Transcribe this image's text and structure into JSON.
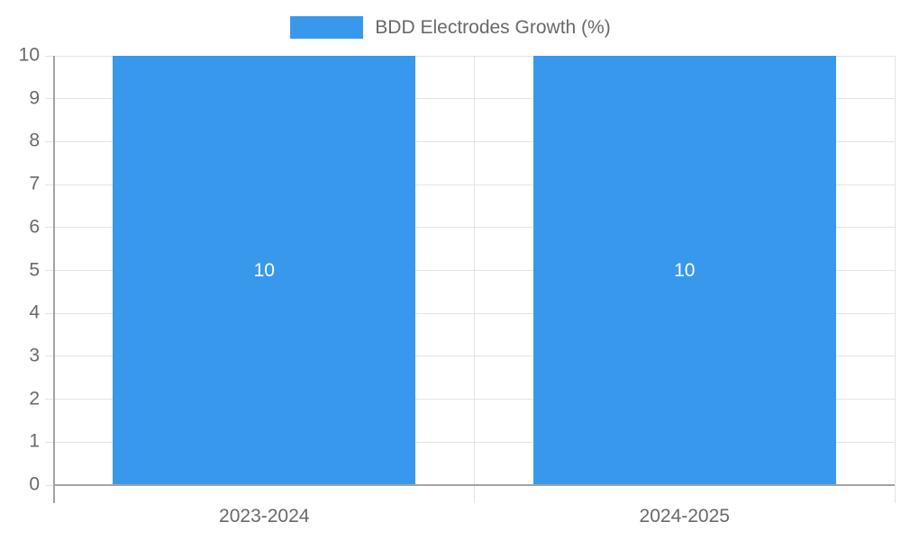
{
  "chart_data": {
    "type": "bar",
    "title": "BDD Electrodes Growth (%)",
    "legend": {
      "label": "BDD Electrodes Growth (%)",
      "position": "top"
    },
    "categories": [
      "2023-2024",
      "2024-2025"
    ],
    "series": [
      {
        "name": "BDD Electrodes Growth (%)",
        "values": [
          10,
          10
        ]
      }
    ],
    "value_labels": [
      "10",
      "10"
    ],
    "xlabel": "",
    "ylabel": "",
    "ylim": [
      0,
      10
    ],
    "yticks": [
      0,
      1,
      2,
      3,
      4,
      5,
      6,
      7,
      8,
      9,
      10
    ],
    "grid": true,
    "colors": {
      "bar": "#3899ec",
      "grid_line": "#e3e3e3",
      "axis_line": "#a3a3a3",
      "tick_text": "#696969",
      "legend_text": "#696969",
      "value_label_text": "#ffffff",
      "background": "#ffffff"
    }
  }
}
